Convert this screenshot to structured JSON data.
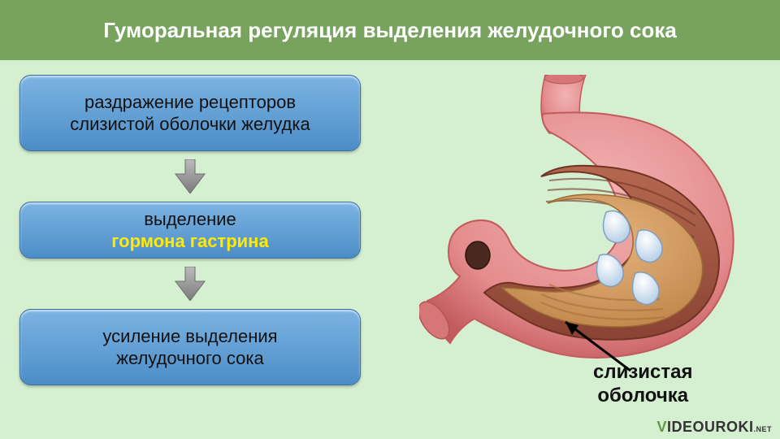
{
  "header": {
    "title": "Гуморальная регуляция выделения желудочного сока",
    "bg_color": "#77a35e",
    "text_color": "#ffffff",
    "fontsize": 26
  },
  "content": {
    "bg_color": "#d4f0d0"
  },
  "steps": [
    {
      "lines": [
        "раздражение рецепторов",
        "слизистой оболочки желудка"
      ],
      "text_color": "#111111"
    },
    {
      "lines_rich": [
        {
          "text": "выделение ",
          "color": "#111111"
        },
        {
          "text": "гормона гастрина",
          "color": "#ffea00"
        }
      ]
    },
    {
      "lines": [
        "усиление выделения",
        "желудочного сока"
      ],
      "text_color": "#111111"
    }
  ],
  "step_box": {
    "fill_top": "#7cb4e3",
    "fill_bottom": "#4c8dc7",
    "border_color": "#3a6da0",
    "height1": 94,
    "height2": 70,
    "height3": 94,
    "fontsize": 22
  },
  "arrow": {
    "fill": "#8c8c8c",
    "stroke": "#6d6d6d",
    "width": 40,
    "height": 42
  },
  "stomach": {
    "outer_color": "#e48b8d",
    "outer_highlight": "#f2b4b4",
    "outer_edge": "#c35b5e",
    "muscle_color": "#a55641",
    "muscle_stripe": "#8a4333",
    "mucosa_color": "#d49a5f",
    "mucosa_highlight": "#e6b57e",
    "droplet_fill_top": "#ffffff",
    "droplet_fill_bottom": "#b8d0e8",
    "droplet_stroke": "#7fa0c4",
    "duodenum_opening": "#4a2820"
  },
  "label": {
    "lines": [
      "слизистая",
      "оболочка"
    ],
    "text_color": "#111111",
    "arrow_color": "#000000",
    "fontsize": 24
  },
  "watermark": {
    "main": "VIDEOUROKI",
    "suffix": ".NET",
    "main_color": "#333333",
    "accent_color": "#669944"
  }
}
